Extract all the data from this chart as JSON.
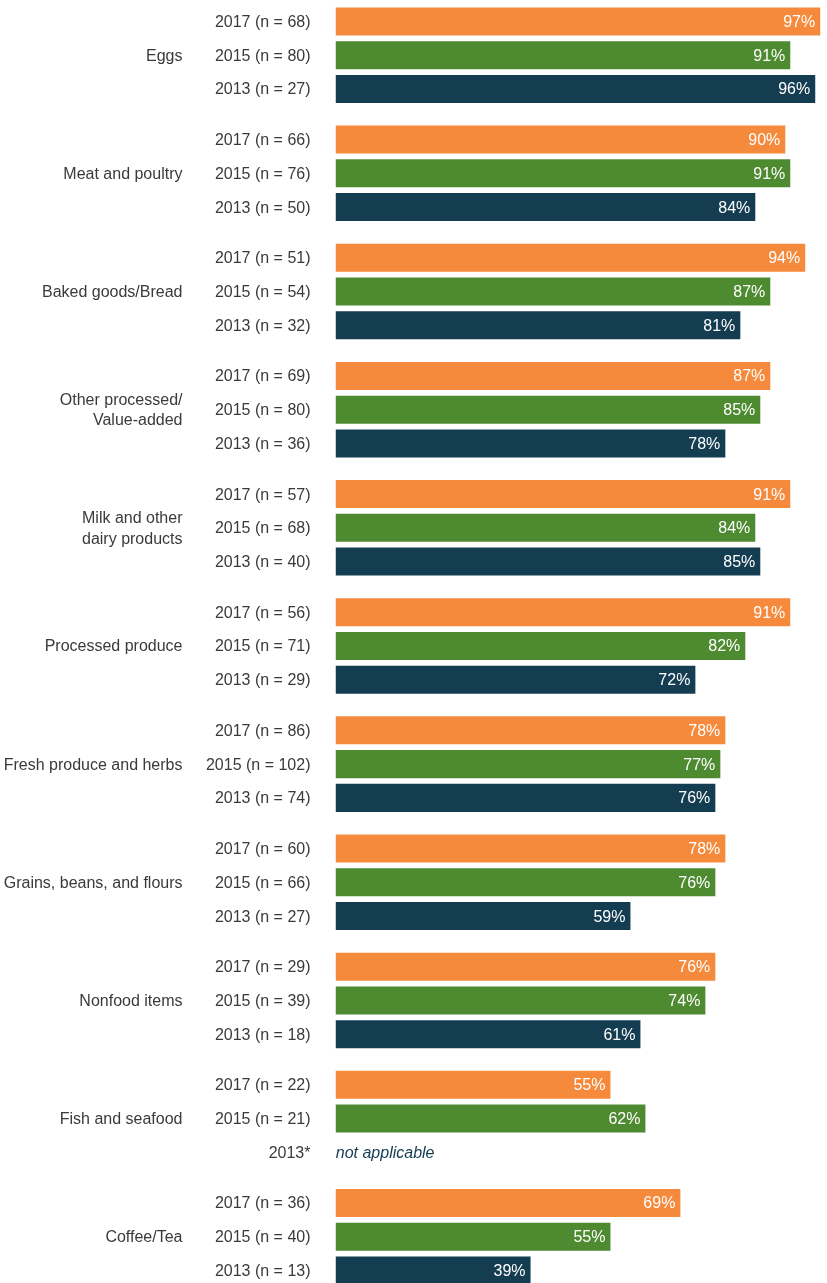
{
  "chart_data": {
    "type": "bar",
    "orientation": "horizontal",
    "tick_labels": false,
    "categories": [
      "2017 (n = 68)",
      "2015 (n = 80)",
      "2013 (n = 27)",
      "2017 (n = 66)",
      "2015 (n = 76)",
      "2013 (n = 50)",
      "2017 (n = 51)",
      "2015 (n = 54)",
      "2013 (n = 32)",
      "2017 (n = 69)",
      "2015 (n = 80)",
      "2013 (n = 36)",
      "2017 (n = 57)",
      "2015 (n = 68)",
      "2013 (n = 40)",
      "2017 (n = 56)",
      "2015 (n = 71)",
      "2013 (n = 29)",
      "2017 (n = 86)",
      "2015 (n = 102)",
      "2013 (n = 74)",
      "2017 (n = 60)",
      "2015 (n = 66)",
      "2013 (n = 27)",
      "2017 (n = 29)",
      "2015 (n = 39)",
      "2013 (n = 18)",
      "2017 (n = 22)",
      "2015 (n = 21)",
      "2013*",
      "2017 (n = 36)",
      "2015 (n = 40)",
      "2013 (n = 13)"
    ],
    "values": [
      97,
      91,
      96,
      90,
      91,
      84,
      94,
      87,
      81,
      87,
      85,
      78,
      91,
      84,
      85,
      91,
      82,
      72,
      78,
      77,
      76,
      78,
      76,
      59,
      76,
      74,
      61,
      55,
      62,
      null,
      69,
      55,
      39
    ],
    "value_labels": [
      "97%",
      "91%",
      "96%",
      "90%",
      "91%",
      "84%",
      "94%",
      "87%",
      "81%",
      "87%",
      "85%",
      "78%",
      "91%",
      "84%",
      "85%",
      "91%",
      "82%",
      "72%",
      "78%",
      "77%",
      "76%",
      "78%",
      "76%",
      "59%",
      "76%",
      "74%",
      "61%",
      "55%",
      "62%",
      null,
      "69%",
      "55%",
      "39%"
    ],
    "colors": [
      "#f58a3c",
      "#4e8a30",
      "#143d52",
      "#f58a3c",
      "#4e8a30",
      "#143d52",
      "#f58a3c",
      "#4e8a30",
      "#143d52",
      "#f58a3c",
      "#4e8a30",
      "#143d52",
      "#f58a3c",
      "#4e8a30",
      "#143d52",
      "#f58a3c",
      "#4e8a30",
      "#143d52",
      "#f58a3c",
      "#4e8a30",
      "#143d52",
      "#f58a3c",
      "#4e8a30",
      "#143d52",
      "#f58a3c",
      "#4e8a30",
      "#143d52",
      "#f58a3c",
      "#4e8a30",
      "#143d52",
      "#f58a3c",
      "#4e8a30",
      "#143d52"
    ],
    "annotations": [
      "Eggs",
      "Meat and poultry",
      "Baked goods/Bread",
      "Other processed/\nValue-added",
      "Milk and other\ndairy products",
      "Processed produce",
      "Fresh produce and herbs",
      "Grains, beans, and flours",
      "Nonfood items",
      "Fish and seafood",
      "Coffee/Tea",
      "not applicable"
    ]
  }
}
